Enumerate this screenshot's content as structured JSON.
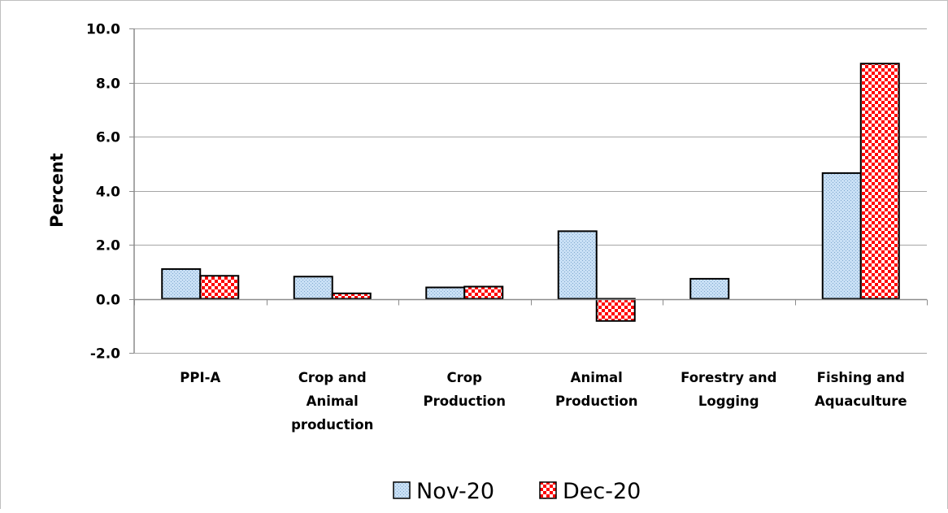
{
  "chart_data": {
    "type": "bar",
    "title": "",
    "xlabel": "",
    "ylabel": "Percent",
    "ylim": [
      -2.0,
      10.0
    ],
    "yticks": [
      -2.0,
      0.0,
      2.0,
      4.0,
      6.0,
      8.0,
      10.0
    ],
    "ytick_labels": [
      "-2.0",
      "0.0",
      "2.0",
      "4.0",
      "6.0",
      "8.0",
      "10.0"
    ],
    "grid": true,
    "legend_position": "bottom",
    "categories": [
      [
        "PPI-A"
      ],
      [
        "Crop and",
        "Animal",
        "production"
      ],
      [
        "Crop",
        "Production"
      ],
      [
        "Animal",
        "Production"
      ],
      [
        "Forestry and",
        "Logging"
      ],
      [
        "Fishing and",
        "Aquaculture"
      ]
    ],
    "series": [
      {
        "name": "Nov-20",
        "values": [
          1.1,
          0.82,
          0.42,
          2.5,
          0.74,
          4.65
        ],
        "color": "#bdd7ee",
        "pattern": "fine-dots"
      },
      {
        "name": "Dec-20",
        "values": [
          0.85,
          0.2,
          0.45,
          -0.82,
          0.0,
          8.7
        ],
        "color": "#ff0000",
        "pattern": "checker"
      }
    ]
  }
}
